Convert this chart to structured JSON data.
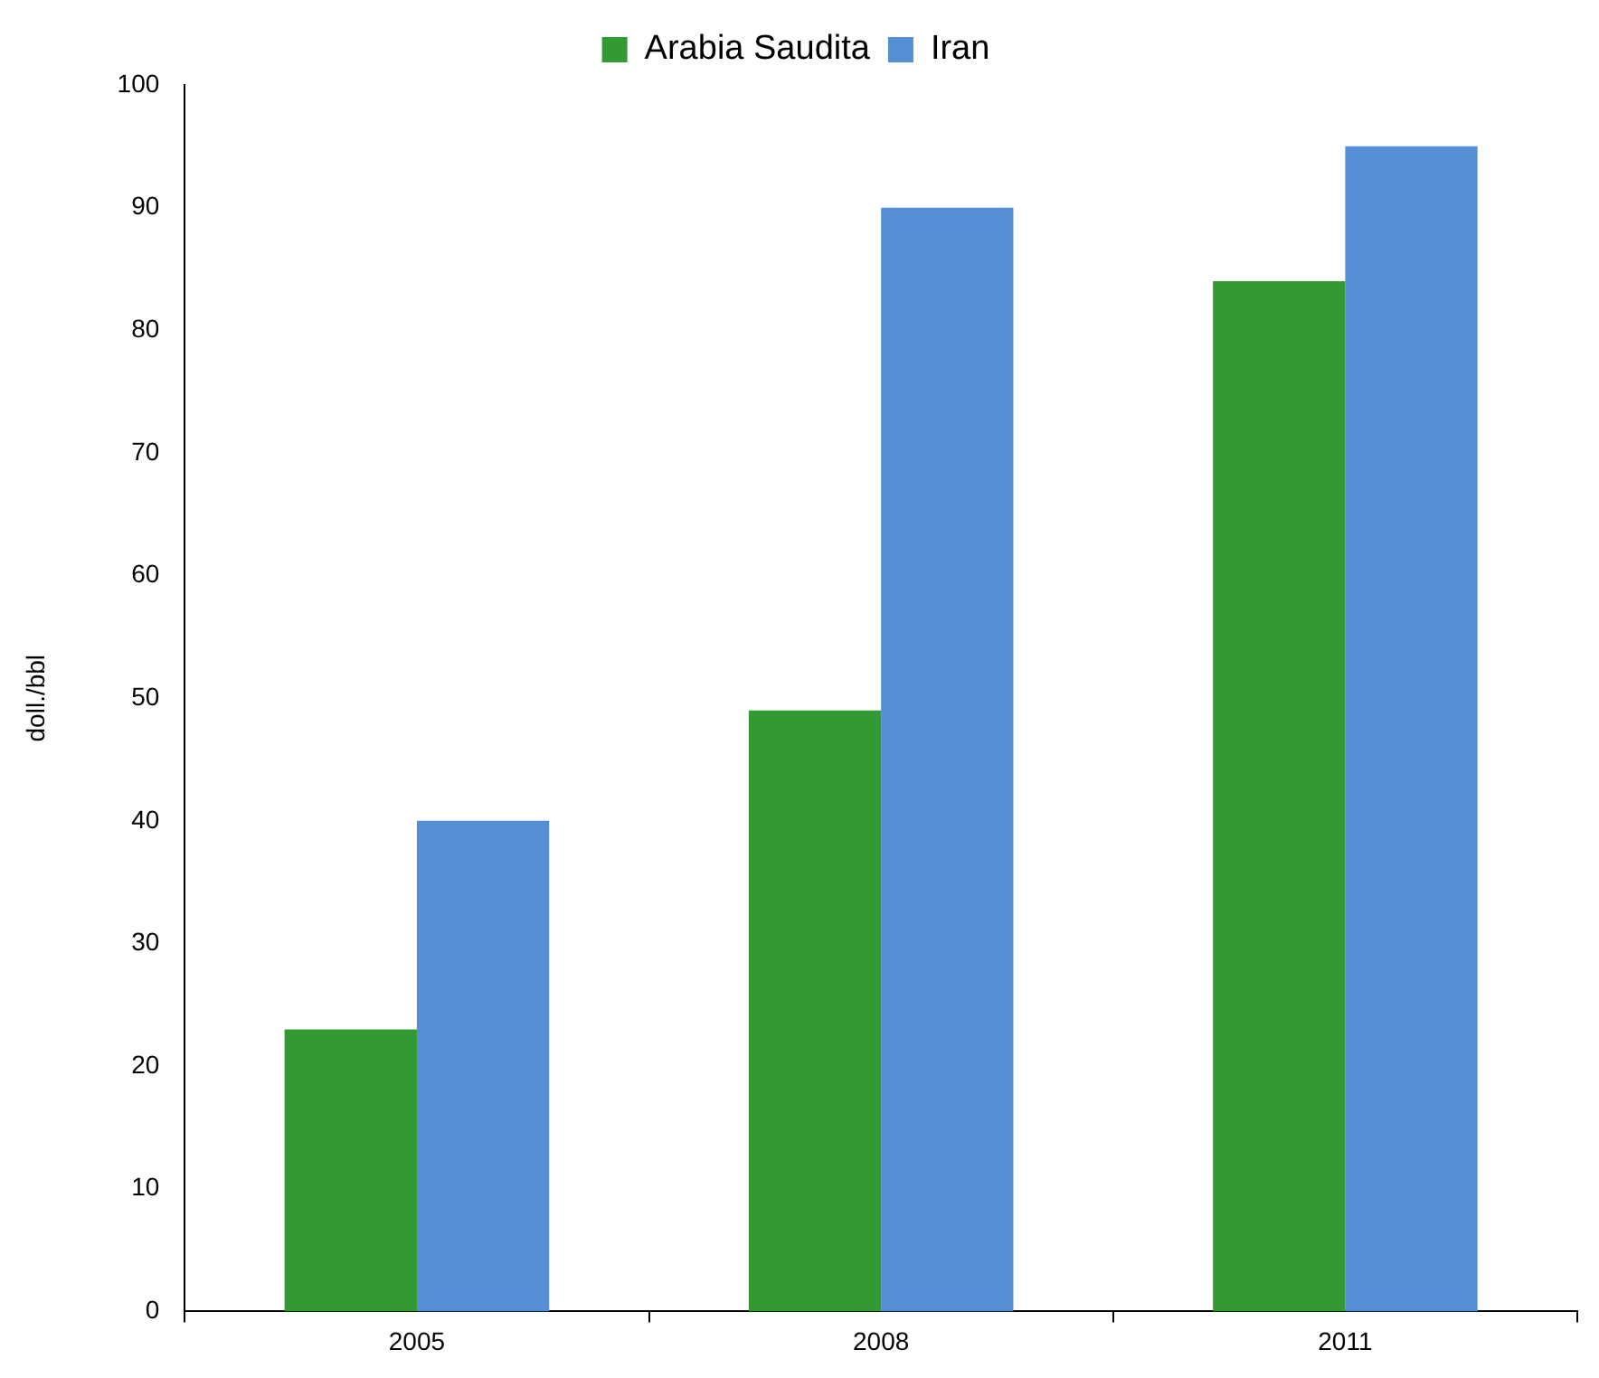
{
  "chart_data": {
    "type": "bar",
    "ylabel": "doll./bbl",
    "categories": [
      "2005",
      "2008",
      "2011"
    ],
    "series": [
      {
        "name": "Arabia Saudita",
        "color": "#339933",
        "values": [
          23,
          49,
          84
        ]
      },
      {
        "name": "Iran",
        "color": "#548ed5",
        "values": [
          40,
          90,
          95
        ]
      }
    ],
    "ylim": [
      0,
      100
    ],
    "yticks": [
      0,
      10,
      20,
      30,
      40,
      50,
      60,
      70,
      80,
      90,
      100
    ],
    "legend": "top"
  }
}
